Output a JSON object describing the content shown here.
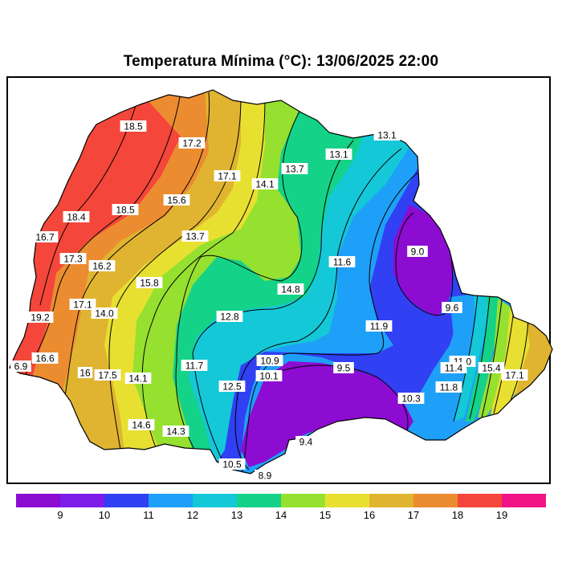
{
  "title": "Temperatura Mínima (°C): 13/06/2025 22:00",
  "colorbar": {
    "colors": [
      "#8c0cd2",
      "#7e1cea",
      "#3040f2",
      "#1ea0f8",
      "#14c8d8",
      "#14d288",
      "#96e030",
      "#e8e030",
      "#e0b430",
      "#ec8c30",
      "#f4463a",
      "#f01484"
    ],
    "ticks": [
      "9",
      "10",
      "11",
      "12",
      "13",
      "14",
      "15",
      "16",
      "17",
      "18",
      "19"
    ]
  },
  "labels": [
    {
      "id": "l01",
      "text": "18.5"
    },
    {
      "id": "l02",
      "text": "17.2"
    },
    {
      "id": "l03",
      "text": "13.1"
    },
    {
      "id": "l04",
      "text": "13.1"
    },
    {
      "id": "l05",
      "text": "17.1"
    },
    {
      "id": "l06",
      "text": "14.1"
    },
    {
      "id": "l07",
      "text": "13.7"
    },
    {
      "id": "l08",
      "text": "15.6"
    },
    {
      "id": "l09",
      "text": "18.4"
    },
    {
      "id": "l10",
      "text": "18.5"
    },
    {
      "id": "l11",
      "text": "16.7"
    },
    {
      "id": "l12",
      "text": "13.7"
    },
    {
      "id": "l13",
      "text": "9.0"
    },
    {
      "id": "l14",
      "text": "17.3"
    },
    {
      "id": "l15",
      "text": "16.2"
    },
    {
      "id": "l16",
      "text": "11.6"
    },
    {
      "id": "l17",
      "text": "15.8"
    },
    {
      "id": "l18",
      "text": "14.8"
    },
    {
      "id": "l19",
      "text": "17.1"
    },
    {
      "id": "l20",
      "text": "14.0"
    },
    {
      "id": "l21",
      "text": "9.6"
    },
    {
      "id": "l22",
      "text": "19.2"
    },
    {
      "id": "l23",
      "text": "12.8"
    },
    {
      "id": "l24",
      "text": "11.9"
    },
    {
      "id": "l25",
      "text": "16.6"
    },
    {
      "id": "l26",
      "text": "6.9"
    },
    {
      "id": "l27",
      "text": "10.9"
    },
    {
      "id": "l28",
      "text": "11.7"
    },
    {
      "id": "l29",
      "text": "9.5"
    },
    {
      "id": "l30",
      "text": "11.0"
    },
    {
      "id": "l31",
      "text": "16"
    },
    {
      "id": "l32",
      "text": "17.5"
    },
    {
      "id": "l33",
      "text": "14.1"
    },
    {
      "id": "l34",
      "text": "10.1"
    },
    {
      "id": "l35",
      "text": "11.4"
    },
    {
      "id": "l36",
      "text": "15.4"
    },
    {
      "id": "l37",
      "text": "17.1"
    },
    {
      "id": "l38",
      "text": "12.5"
    },
    {
      "id": "l39",
      "text": "11.8"
    },
    {
      "id": "l40",
      "text": "10.3"
    },
    {
      "id": "l41",
      "text": "14.6"
    },
    {
      "id": "l42",
      "text": "14.3"
    },
    {
      "id": "l43",
      "text": "9.4"
    },
    {
      "id": "l44",
      "text": "10.5"
    },
    {
      "id": "l45",
      "text": "8.9"
    }
  ]
}
